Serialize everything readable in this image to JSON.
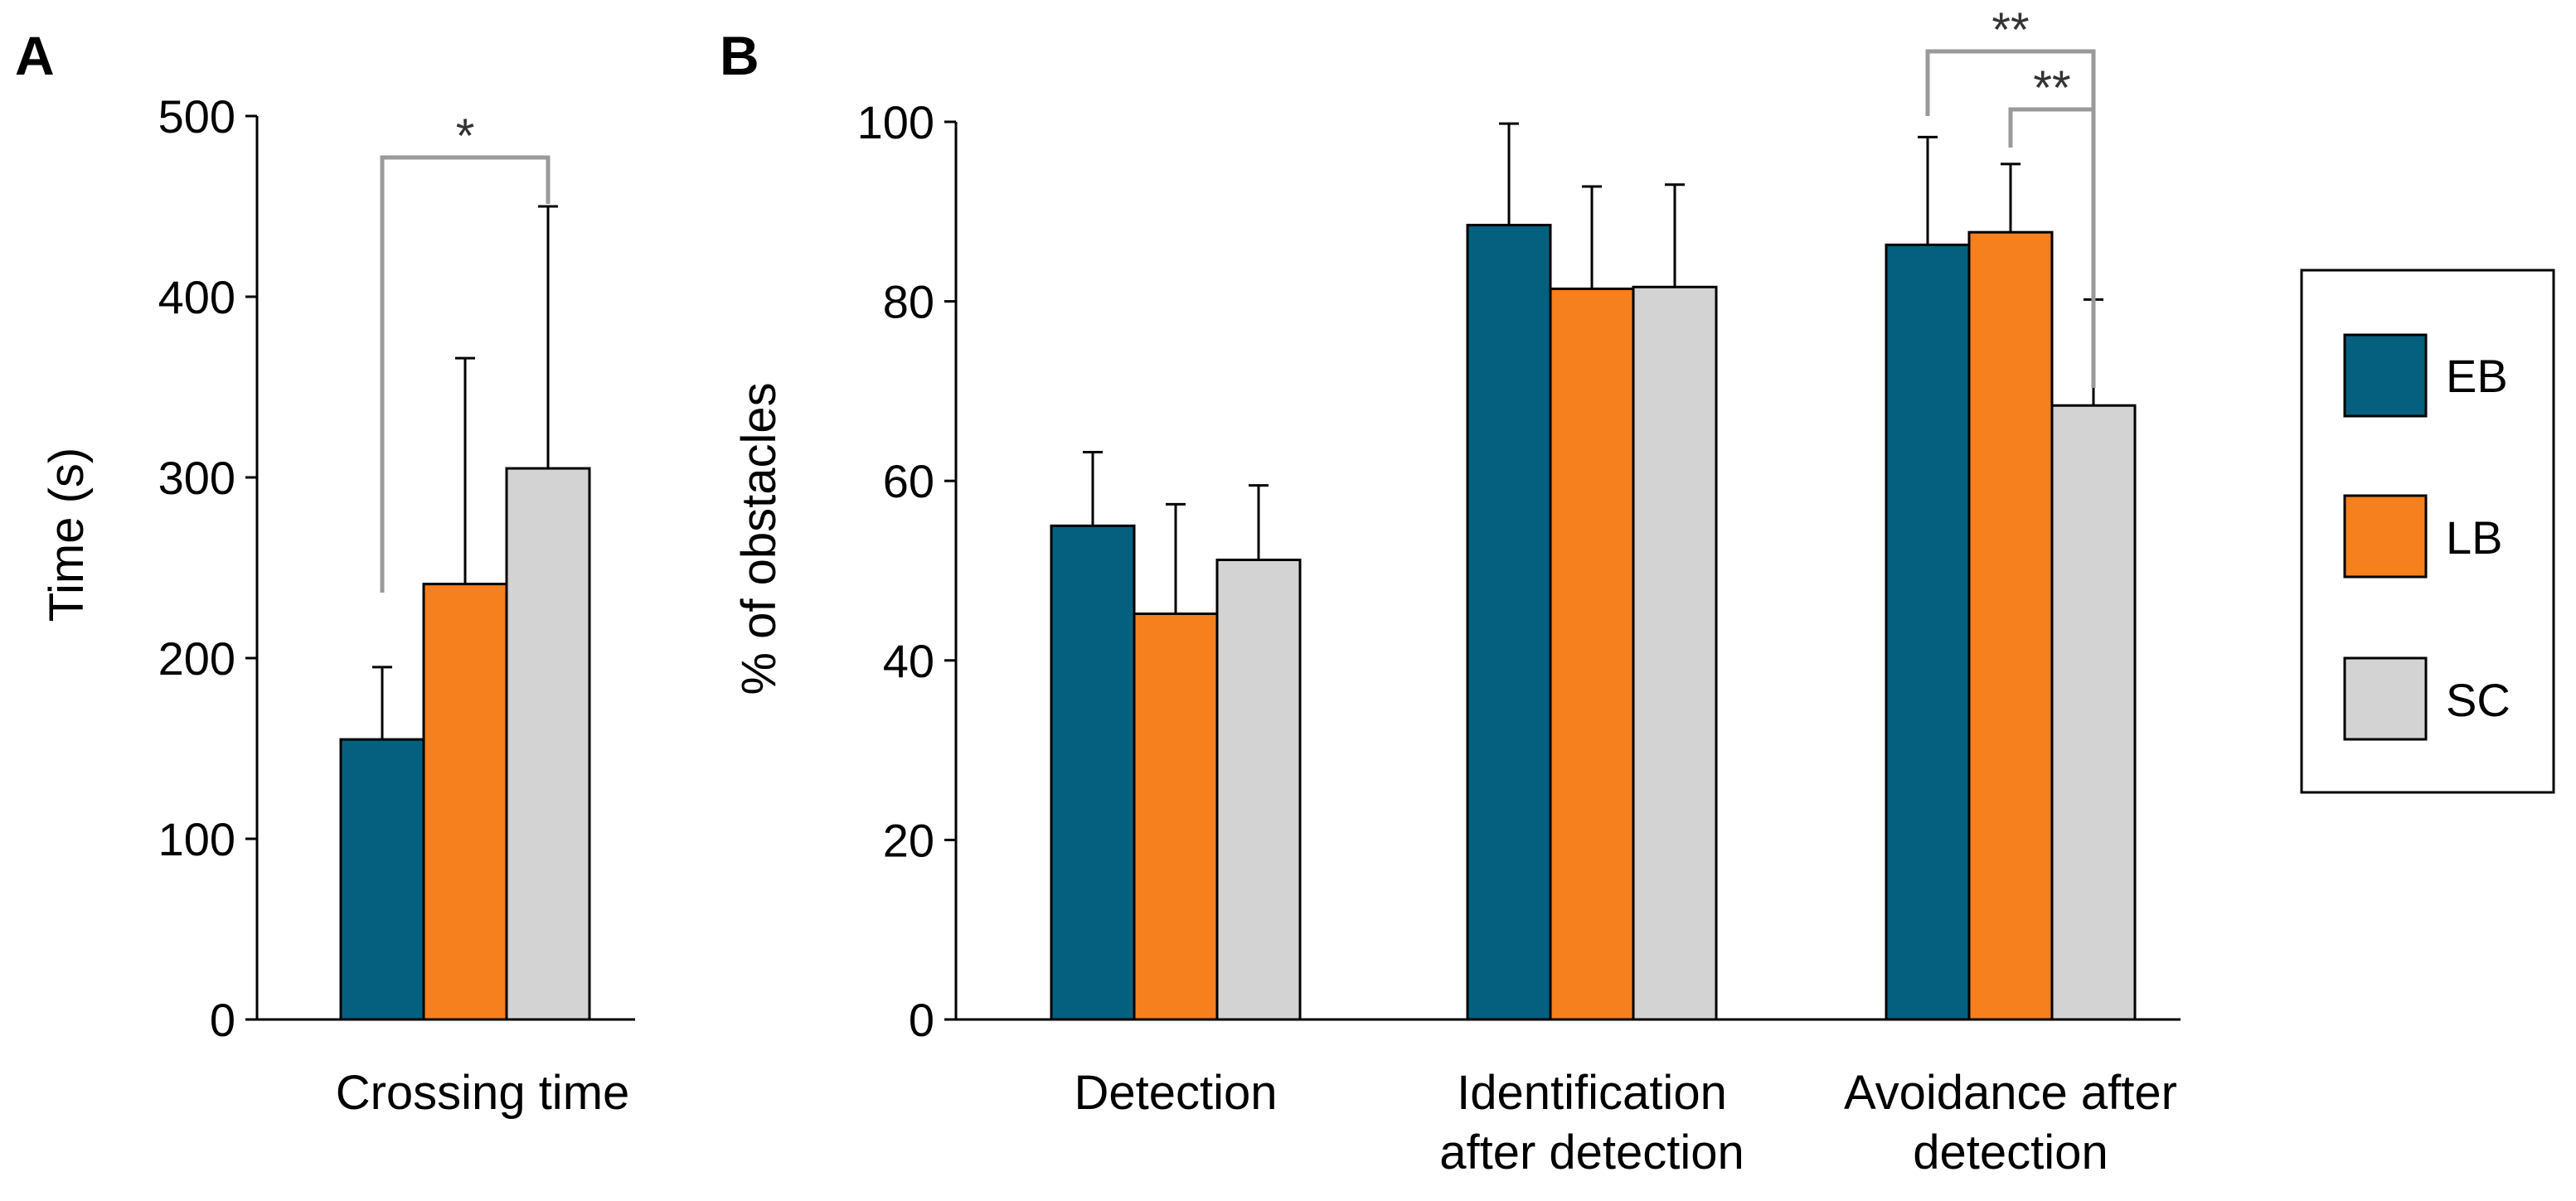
{
  "colors": {
    "EB": "#04607e",
    "LB": "#f67f1e",
    "SC": "#d3d3d3",
    "bracket": "#9a9a9a"
  },
  "legend": {
    "placement": "right",
    "items": [
      {
        "key": "EB",
        "label": "EB"
      },
      {
        "key": "LB",
        "label": "LB"
      },
      {
        "key": "SC",
        "label": "SC"
      }
    ]
  },
  "chart_data": [
    {
      "panel": "A",
      "type": "bar",
      "categories": [
        "Crossing time"
      ],
      "ylabel": "Time (s)",
      "ylim": [
        0,
        500
      ],
      "yticks": [
        "0",
        "100",
        "200",
        "300",
        "400",
        "500"
      ],
      "grid": false,
      "series": [
        {
          "name": "EB",
          "values": [
            155
          ],
          "errors": [
            40
          ]
        },
        {
          "name": "LB",
          "values": [
            241
          ],
          "errors": [
            125
          ]
        },
        {
          "name": "SC",
          "values": [
            305
          ],
          "errors": [
            145
          ]
        }
      ],
      "significance": [
        {
          "from": "EB",
          "to": "SC",
          "category": 0,
          "label": "*"
        }
      ]
    },
    {
      "panel": "B",
      "type": "bar",
      "categories": [
        "Detection",
        "Identification after detection",
        "Avoidance after detection"
      ],
      "category_lines": [
        [
          "Detection"
        ],
        [
          "Identification",
          "after detection"
        ],
        [
          "Avoidance after",
          "detection"
        ]
      ],
      "ylabel": "% of obstacles",
      "ylim": [
        0,
        100
      ],
      "yticks": [
        "0",
        "20",
        "40",
        "60",
        "80",
        "100"
      ],
      "grid": false,
      "series": [
        {
          "name": "EB",
          "values": [
            55,
            88.5,
            86.3
          ],
          "errors": [
            8.2,
            11.3,
            12.0
          ]
        },
        {
          "name": "LB",
          "values": [
            45.2,
            81.4,
            87.7
          ],
          "errors": [
            12.2,
            11.4,
            7.6
          ]
        },
        {
          "name": "SC",
          "values": [
            51.2,
            81.6,
            68.4
          ],
          "errors": [
            8.3,
            11.4,
            11.8
          ]
        }
      ],
      "significance": [
        {
          "from": "EB",
          "to": "SC",
          "category": 2,
          "label": "**"
        },
        {
          "from": "LB",
          "to": "SC",
          "category": 2,
          "label": "**"
        }
      ]
    }
  ]
}
